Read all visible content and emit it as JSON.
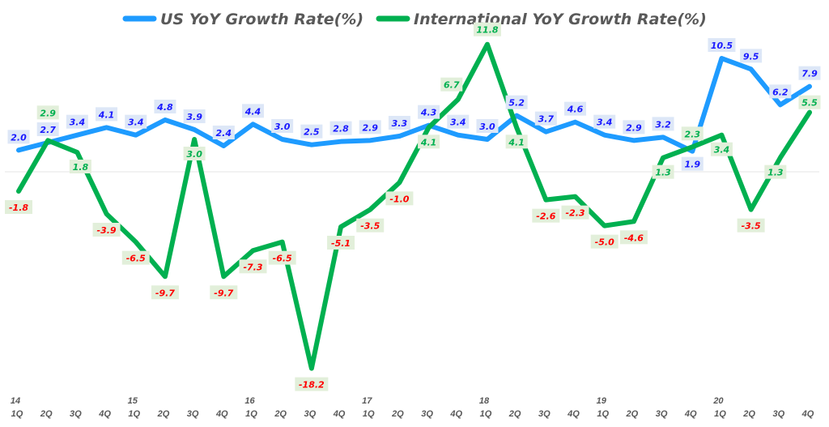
{
  "chart_data": {
    "type": "line",
    "title": "",
    "xlabel": "",
    "ylabel": "",
    "ylim": [
      -19,
      13
    ],
    "grid": false,
    "zero_line": true,
    "legend_position": "top",
    "year_labels": [
      "14",
      "",
      "",
      "",
      "15",
      "",
      "",
      "",
      "16",
      "",
      "",
      "",
      "17",
      "",
      "",
      "",
      "18",
      "",
      "",
      "",
      "19",
      "",
      "",
      "",
      "20",
      "",
      "",
      ""
    ],
    "categories": [
      "1Q",
      "2Q",
      "3Q",
      "4Q",
      "1Q",
      "2Q",
      "3Q",
      "4Q",
      "1Q",
      "2Q",
      "3Q",
      "4Q",
      "1Q",
      "2Q",
      "3Q",
      "4Q",
      "1Q",
      "2Q",
      "3Q",
      "4Q",
      "1Q",
      "2Q",
      "3Q",
      "4Q",
      "1Q",
      "2Q",
      "3Q",
      "4Q"
    ],
    "series": [
      {
        "name": "US YoY Growth Rate(%)",
        "color": "#1E9BFF",
        "label_color": "#1A1AFF",
        "label_bg": "#DDE7F7",
        "values": [
          2.0,
          2.7,
          3.4,
          4.1,
          3.4,
          4.8,
          3.9,
          2.4,
          4.4,
          3.0,
          2.5,
          2.8,
          2.9,
          3.3,
          4.3,
          3.4,
          3.0,
          5.2,
          3.7,
          4.6,
          3.4,
          2.9,
          3.2,
          1.9,
          10.5,
          9.5,
          6.2,
          7.9
        ]
      },
      {
        "name": "International YoY Growth Rate(%)",
        "color": "#00B050",
        "label_color_positive": "#00B050",
        "label_color_negative": "#FF0000",
        "label_bg": "#E2EFDA",
        "values": [
          -1.8,
          2.9,
          1.8,
          -3.9,
          -6.5,
          -9.7,
          3.0,
          -9.7,
          -7.3,
          -6.5,
          -18.2,
          -5.1,
          -3.5,
          -1.0,
          4.1,
          6.7,
          11.8,
          4.1,
          -2.6,
          -2.3,
          -5.0,
          -4.6,
          1.3,
          2.3,
          3.4,
          -3.5,
          1.3,
          5.5
        ]
      }
    ]
  }
}
